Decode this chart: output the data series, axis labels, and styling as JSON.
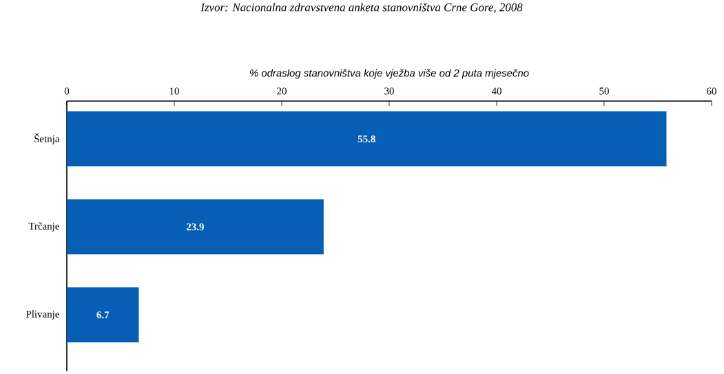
{
  "chart_data": {
    "type": "bar",
    "orientation": "horizontal",
    "xlabel": "% odraslog stanovništva koje vježba više od 2 puta mjesečno",
    "annotations": [
      "Izvor: Nacionalna zdravstvena anketa stanovništva Crne Gore, 2008"
    ],
    "categories": [
      "Šetnja",
      "Trčanje",
      "Plivanje"
    ],
    "values": [
      55.8,
      23.9,
      6.7
    ],
    "value_labels": [
      "55.8",
      "23.9",
      "6.7"
    ],
    "color": "#065fb4",
    "xlim": [
      0,
      60
    ],
    "xticks": [
      0,
      10,
      20,
      30,
      40,
      50,
      60
    ]
  }
}
